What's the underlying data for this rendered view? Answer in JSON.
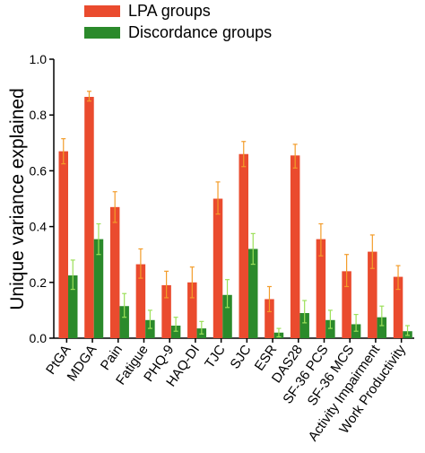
{
  "chart_data": {
    "type": "bar",
    "ylabel": "Unique variance explained",
    "ylim": [
      0,
      1.0
    ],
    "yticks": [
      "0.0",
      "0.2",
      "0.4",
      "0.6",
      "0.8",
      "1.0"
    ],
    "ytick_values": [
      0,
      0.2,
      0.4,
      0.6,
      0.8,
      1.0
    ],
    "categories": [
      "PtGA",
      "MDGA",
      "Pain",
      "Fatigue",
      "PHQ-9",
      "HAQ-DI",
      "TJC",
      "SJC",
      "ESR",
      "DAS28",
      "SF-36 PCS",
      "SF-36 MCS",
      "Activity Impairment",
      "Work Productivity"
    ],
    "legend_position": "top-left",
    "series": [
      {
        "name": "LPA groups",
        "color": "#ea4b2e",
        "error_color": "#f39c2a",
        "values": [
          0.67,
          0.865,
          0.47,
          0.265,
          0.19,
          0.2,
          0.5,
          0.66,
          0.14,
          0.655,
          0.355,
          0.24,
          0.31,
          0.22
        ],
        "err_low": [
          0.625,
          0.85,
          0.415,
          0.215,
          0.145,
          0.145,
          0.445,
          0.615,
          0.095,
          0.61,
          0.295,
          0.185,
          0.25,
          0.175
        ],
        "err_high": [
          0.715,
          0.885,
          0.525,
          0.32,
          0.24,
          0.255,
          0.56,
          0.705,
          0.185,
          0.695,
          0.41,
          0.3,
          0.37,
          0.26
        ]
      },
      {
        "name": "Discordance groups",
        "color": "#2b8a2b",
        "error_color": "#9ce05a",
        "values": [
          0.225,
          0.355,
          0.115,
          0.065,
          0.045,
          0.035,
          0.155,
          0.32,
          0.02,
          0.09,
          0.065,
          0.05,
          0.075,
          0.025
        ],
        "err_low": [
          0.175,
          0.3,
          0.075,
          0.035,
          0.025,
          0.015,
          0.11,
          0.265,
          0.005,
          0.055,
          0.035,
          0.025,
          0.045,
          0.01
        ],
        "err_high": [
          0.28,
          0.41,
          0.16,
          0.1,
          0.075,
          0.06,
          0.21,
          0.375,
          0.035,
          0.135,
          0.1,
          0.085,
          0.115,
          0.045
        ]
      }
    ]
  }
}
